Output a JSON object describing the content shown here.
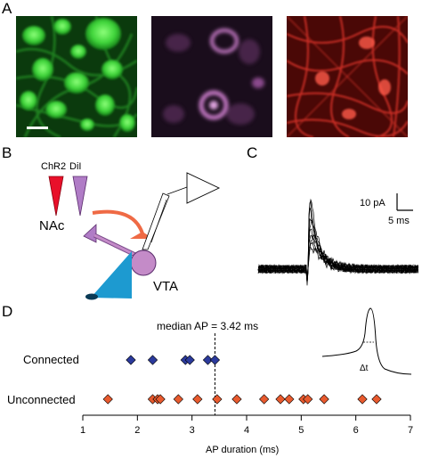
{
  "panels": {
    "a": "A",
    "b": "B",
    "c": "C",
    "d": "D"
  },
  "colors": {
    "green_channel": "#2fd02f",
    "magenta_channel": "#b85bb5",
    "red_channel": "#d62a26",
    "chr2_pipette": "#e8102a",
    "dil_pipette": "#b07cc6",
    "nac_arrow": "#ef6a45",
    "vta_cell": "#c48bc8",
    "blue_neuron": "#1d9ad0",
    "connected_marker": "#2b3a9c",
    "unconnected_marker": "#e85a2e"
  },
  "schematic": {
    "chr2_label": "ChR2",
    "dil_label": "DiI",
    "nac_label": "NAc",
    "vta_label": "VTA"
  },
  "trace_scale": {
    "current_label": "10 pA",
    "time_label": "5 ms"
  },
  "chart_data": {
    "type": "scatter",
    "annotation": "median AP = 3.42 ms",
    "median": 3.42,
    "xlabel": "AP duration (ms)",
    "xlim": [
      1,
      7
    ],
    "xticks": [
      "1",
      "2",
      "3",
      "4",
      "5",
      "6",
      "7"
    ],
    "categories": [
      "Connected",
      "Unconnected"
    ],
    "series": [
      {
        "name": "Connected",
        "values": [
          1.88,
          2.28,
          2.88,
          2.96,
          3.29,
          3.42
        ]
      },
      {
        "name": "Unconnected",
        "values": [
          1.46,
          2.28,
          2.37,
          2.42,
          2.75,
          3.1,
          3.46,
          3.82,
          4.32,
          4.62,
          4.78,
          5.04,
          5.12,
          5.42,
          6.12,
          6.38
        ]
      }
    ],
    "inset_label": "Δt"
  }
}
